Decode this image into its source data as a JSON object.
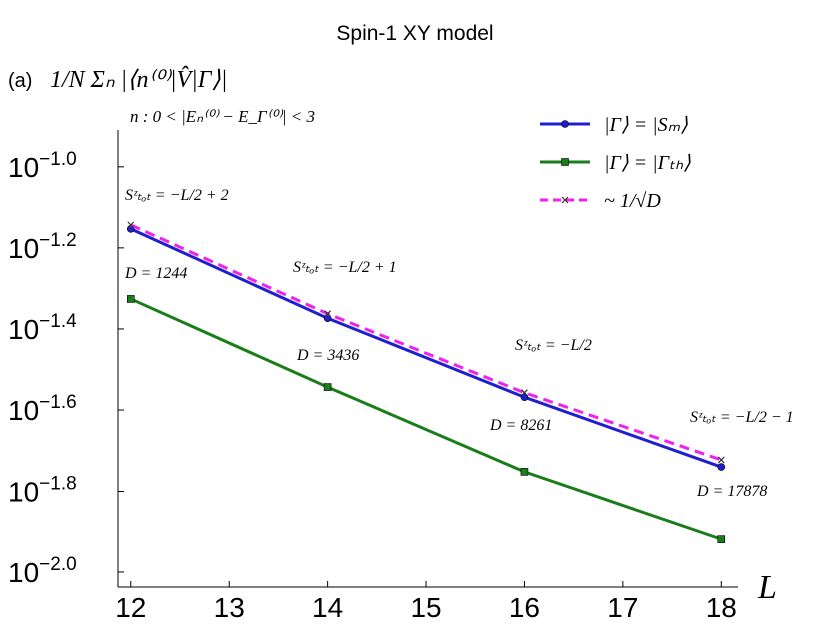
{
  "chart_data": {
    "type": "line",
    "title": "Spin-1 XY model",
    "panel_label": "(a)",
    "ylabel": "1/N Σₙ |⟨n⁽⁰⁾|V̂|Γ⟩|",
    "ylabel_condition": "n : 0 < |Eₙ⁽⁰⁾ − E_Γ⁽⁰⁾| < 3",
    "xlabel": "L",
    "x": [
      12,
      14,
      16,
      18
    ],
    "xlim": [
      11.87,
      18.17
    ],
    "xticks": [
      12,
      13,
      14,
      15,
      16,
      17,
      18
    ],
    "log_y": true,
    "ylim": [
      0.00918,
      0.1233
    ],
    "yticks": [
      {
        "value": 0.1,
        "label": "10-1.0"
      },
      {
        "value": 0.0631,
        "label": "10-1.2"
      },
      {
        "value": 0.0398,
        "label": "10-1.4"
      },
      {
        "value": 0.0251,
        "label": "10-1.6"
      },
      {
        "value": 0.0158,
        "label": "10-1.8"
      },
      {
        "value": 0.01,
        "label": "10-2.0"
      }
    ],
    "series": [
      {
        "name": "|Γ⟩ = |Sₘ⟩",
        "color": "#1f1fd0",
        "marker": "circle",
        "dashed": false,
        "values": [
          0.0703,
          0.0423,
          0.027,
          0.01815
        ]
      },
      {
        "name": "|Γ⟩ = |Γₜₕ⟩",
        "color": "#1a7d1a",
        "marker": "square",
        "dashed": false,
        "values": [
          0.0472,
          0.0286,
          0.01766,
          0.01205
        ]
      },
      {
        "name": "~ 1/√D",
        "color": "#ee22ee",
        "marker": "x",
        "dashed": true,
        "values": [
          0.0719,
          0.0434,
          0.0277,
          0.0189
        ]
      }
    ],
    "annotations": [
      "Sᶻₜₒₜ = −L/2 + 2",
      "D = 1244",
      "Sᶻₜₒₜ = −L/2 + 1",
      "D = 3436",
      "Sᶻₜₒₜ = −L/2",
      "D = 8261",
      "Sᶻₜₒₜ = −L/2 − 1",
      "D = 17878"
    ]
  }
}
